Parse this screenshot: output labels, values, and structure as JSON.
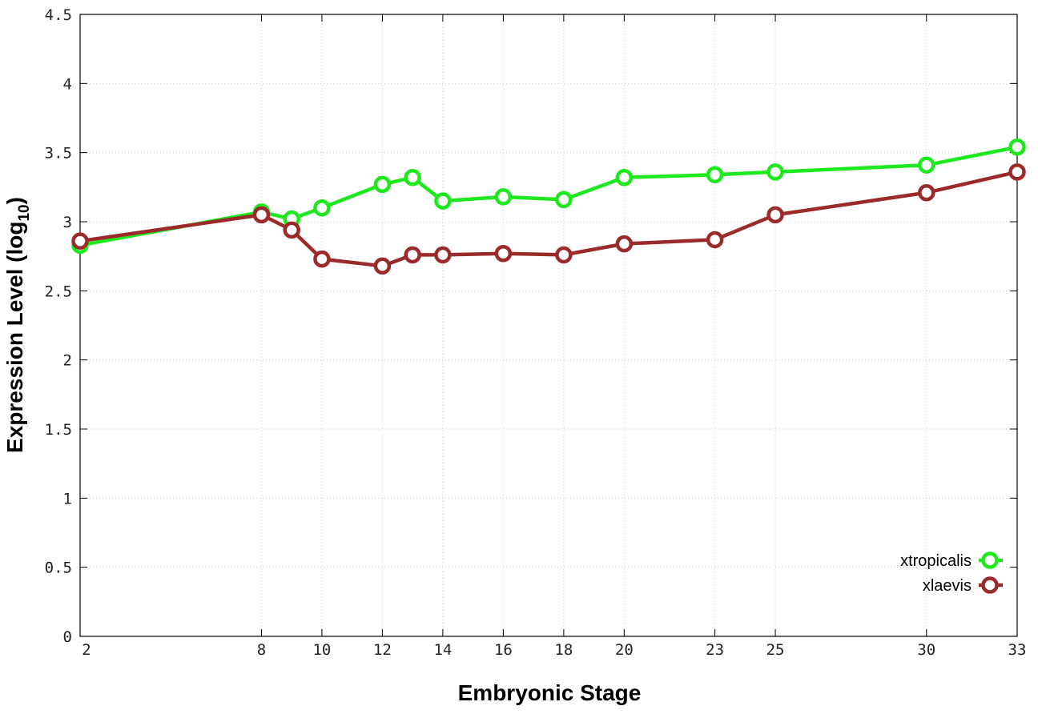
{
  "chart_data": {
    "type": "line",
    "xlabel": "Embryonic Stage",
    "ylabel": "Expression Level (log",
    "ylabel_sub": "10",
    "ylabel_close": ")",
    "ylim": [
      0,
      4.5
    ],
    "yticks": [
      "0",
      "0.5",
      "1",
      "1.5",
      "2",
      "2.5",
      "3",
      "3.5",
      "4",
      "4.5"
    ],
    "ytick_values": [
      0,
      0.5,
      1,
      1.5,
      2,
      2.5,
      3,
      3.5,
      4,
      4.5
    ],
    "xlim": [
      2,
      33
    ],
    "x": [
      2,
      8,
      9,
      10,
      12,
      13,
      14,
      16,
      18,
      20,
      23,
      25,
      30,
      33
    ],
    "xtick_values": [
      2,
      8,
      10,
      12,
      14,
      16,
      18,
      20,
      23,
      25,
      30,
      33
    ],
    "xticks": [
      "2",
      "8",
      "10",
      "12",
      "14",
      "16",
      "18",
      "20",
      "23",
      "25",
      "30",
      "33"
    ],
    "grid": true,
    "legend_position": "bottom-right",
    "series": [
      {
        "name": "xtropicalis",
        "color": "#1ee81e",
        "values": [
          2.83,
          3.07,
          3.02,
          3.1,
          3.27,
          3.32,
          3.15,
          3.18,
          3.16,
          3.32,
          3.34,
          3.36,
          3.41,
          3.54
        ]
      },
      {
        "name": "xlaevis",
        "color": "#9b2a2a",
        "values": [
          2.86,
          3.05,
          2.94,
          2.73,
          2.68,
          2.76,
          2.76,
          2.77,
          2.76,
          2.84,
          2.87,
          3.05,
          3.21,
          3.36
        ]
      }
    ]
  }
}
